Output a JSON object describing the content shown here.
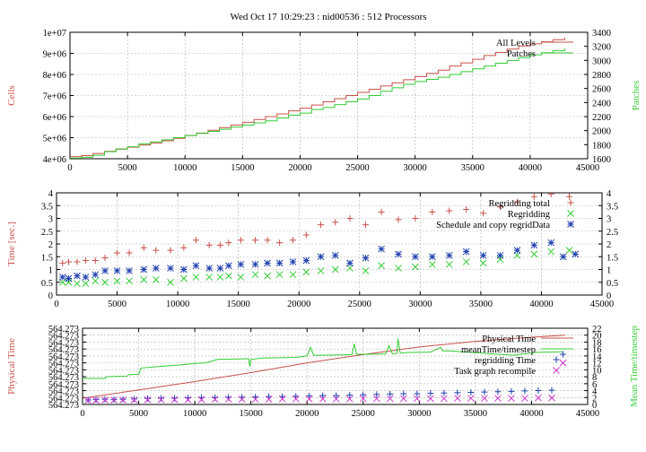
{
  "title": "Wed Oct 17 10:29:23 : nid00536 : 512 Processors",
  "colors": {
    "red": "#c8504a",
    "green": "#33cc33",
    "blue": "#1f3fae",
    "magenta": "#cc33cc",
    "grid": "#b0b0b0",
    "axis": "#000000"
  },
  "chart_data": [
    {
      "type": "line",
      "ylabel": "Cells",
      "y2label": "Patches",
      "xlim": [
        0,
        45000
      ],
      "ylim": [
        4000000,
        10000000
      ],
      "y2lim": [
        1600,
        3400
      ],
      "xticks": [
        "0",
        "5000",
        "10000",
        "15000",
        "20000",
        "25000",
        "30000",
        "35000",
        "40000",
        "45000"
      ],
      "yticks": [
        "4e+06",
        "5e+06",
        "6e+06",
        "7e+06",
        "8e+06",
        "9e+06",
        "1e+07"
      ],
      "y2ticks": [
        "1600",
        "1800",
        "2000",
        "2200",
        "2400",
        "2600",
        "2800",
        "3000",
        "3200",
        "3400"
      ],
      "grid": true,
      "legend_position": "top-right",
      "series": [
        {
          "name": "All Levels",
          "axis": "y",
          "color": "red",
          "step": true,
          "x": [
            0,
            1000,
            2000,
            3000,
            4000,
            5000,
            6000,
            7000,
            8000,
            9000,
            10000,
            11000,
            12000,
            13000,
            14000,
            15000,
            16000,
            17000,
            18000,
            19000,
            20000,
            21000,
            22000,
            23000,
            24000,
            25000,
            26000,
            27000,
            28000,
            29000,
            30000,
            31000,
            32000,
            33000,
            34000,
            35000,
            36000,
            37000,
            38000,
            39000,
            40000,
            41000,
            42000,
            43000
          ],
          "y": [
            4100000,
            4150000,
            4250000,
            4350000,
            4450000,
            4550000,
            4650000,
            4750000,
            4850000,
            4970000,
            5100000,
            5220000,
            5350000,
            5480000,
            5600000,
            5730000,
            5860000,
            6000000,
            6130000,
            6270000,
            6400000,
            6550000,
            6700000,
            6850000,
            7000000,
            7150000,
            7300000,
            7450000,
            7600000,
            7750000,
            7900000,
            8050000,
            8200000,
            8400000,
            8550000,
            8720000,
            8900000,
            9050000,
            9200000,
            9350000,
            9450000,
            9550000,
            9650000,
            9750000
          ]
        },
        {
          "name": "Patches",
          "axis": "y2",
          "color": "green",
          "step": true,
          "x": [
            0,
            1000,
            2000,
            3000,
            4000,
            5000,
            6000,
            7000,
            8000,
            9000,
            10000,
            11000,
            12000,
            13000,
            14000,
            15000,
            16000,
            17000,
            18000,
            19000,
            20000,
            21000,
            22000,
            23000,
            24000,
            25000,
            26000,
            27000,
            28000,
            29000,
            30000,
            31000,
            32000,
            33000,
            34000,
            35000,
            36000,
            37000,
            38000,
            39000,
            40000,
            41000,
            42000,
            43000
          ],
          "y": [
            1610,
            1620,
            1650,
            1700,
            1740,
            1770,
            1810,
            1840,
            1870,
            1900,
            1930,
            1960,
            1990,
            2020,
            2050,
            2080,
            2110,
            2140,
            2180,
            2220,
            2250,
            2300,
            2330,
            2370,
            2410,
            2450,
            2500,
            2560,
            2610,
            2660,
            2700,
            2730,
            2760,
            2800,
            2840,
            2880,
            2920,
            2960,
            3000,
            3040,
            3080,
            3110,
            3140,
            3170
          ]
        }
      ]
    },
    {
      "type": "scatter",
      "ylabel": "Time [sec.]",
      "xlim": [
        0,
        45000
      ],
      "ylim": [
        0,
        4
      ],
      "y2lim": [
        0,
        4
      ],
      "xticks": [
        "0",
        "5000",
        "10000",
        "15000",
        "20000",
        "25000",
        "30000",
        "35000",
        "40000",
        "45000"
      ],
      "yticks": [
        "0",
        "0.5",
        "1",
        "1.5",
        "2",
        "2.5",
        "3",
        "3.5",
        "4"
      ],
      "y2ticks": [
        "0",
        "0.5",
        "1",
        "1.5",
        "2",
        "2.5",
        "3",
        "3.5",
        "4"
      ],
      "grid": true,
      "legend_position": "top-right",
      "series": [
        {
          "name": "Regridding total",
          "color": "red",
          "marker": "plus",
          "x": [
            500,
            1000,
            1700,
            2400,
            3200,
            4000,
            5000,
            6000,
            7200,
            8200,
            9400,
            10500,
            11500,
            12600,
            13500,
            14200,
            15200,
            16400,
            17400,
            18400,
            19500,
            20600,
            21800,
            23000,
            24200,
            25500,
            26800,
            28200,
            29600,
            31000,
            32400,
            33800,
            35200,
            36600,
            38000,
            39400,
            40800,
            42300
          ],
          "y": [
            1.25,
            1.3,
            1.3,
            1.35,
            1.35,
            1.45,
            1.65,
            1.65,
            1.85,
            1.75,
            1.75,
            1.85,
            2.15,
            1.95,
            1.95,
            2.05,
            2.15,
            2.15,
            2.15,
            2.05,
            2.15,
            2.35,
            2.75,
            2.85,
            3.0,
            2.75,
            3.25,
            2.95,
            3.0,
            3.25,
            3.3,
            3.35,
            3.2,
            3.45,
            3.65,
            3.85,
            3.95,
            3.85
          ]
        },
        {
          "name": "Regridding",
          "color": "green",
          "marker": "cross",
          "x": [
            500,
            1000,
            1700,
            2400,
            3200,
            4000,
            5000,
            6000,
            7200,
            8200,
            9400,
            10500,
            11500,
            12600,
            13500,
            14200,
            15200,
            16400,
            17400,
            18400,
            19500,
            20600,
            21800,
            23000,
            24200,
            25500,
            26800,
            28200,
            29600,
            31000,
            32400,
            33800,
            35200,
            36600,
            38000,
            39400,
            40800,
            42300
          ],
          "y": [
            0.5,
            0.5,
            0.45,
            0.45,
            0.55,
            0.5,
            0.55,
            0.55,
            0.6,
            0.6,
            0.5,
            0.65,
            0.7,
            0.7,
            0.7,
            0.75,
            0.7,
            0.8,
            0.75,
            0.8,
            0.8,
            0.9,
            0.95,
            1.0,
            1.05,
            0.95,
            1.15,
            1.05,
            1.1,
            1.2,
            1.2,
            1.3,
            1.25,
            1.4,
            1.55,
            1.6,
            1.7,
            1.75
          ]
        },
        {
          "name": "Schedule and copy regridData",
          "color": "blue",
          "marker": "star",
          "x": [
            500,
            1000,
            1700,
            2400,
            3200,
            4000,
            5000,
            6000,
            7200,
            8200,
            9400,
            10500,
            11500,
            12600,
            13500,
            14200,
            15200,
            16400,
            17400,
            18400,
            19500,
            20600,
            21800,
            23000,
            24200,
            25500,
            26800,
            28200,
            29600,
            31000,
            32400,
            33800,
            35200,
            36600,
            38000,
            39400,
            40800,
            41800,
            42800
          ],
          "y": [
            0.7,
            0.65,
            0.75,
            0.7,
            0.8,
            0.95,
            0.95,
            0.95,
            1.0,
            1.05,
            1.05,
            1.0,
            1.15,
            1.05,
            1.05,
            1.15,
            1.2,
            1.2,
            1.25,
            1.25,
            1.3,
            1.35,
            1.5,
            1.55,
            1.25,
            1.45,
            1.8,
            1.6,
            1.5,
            1.5,
            1.55,
            1.7,
            1.55,
            1.55,
            1.75,
            1.95,
            2.05,
            1.5,
            1.6
          ]
        }
      ]
    },
    {
      "type": "line",
      "ylabel": "Physical Time",
      "y2label": "Mean Time/timestep",
      "xlim": [
        0,
        45000
      ],
      "ylim": [
        0,
        11
      ],
      "y2lim": [
        0,
        22
      ],
      "xticks": [
        "0",
        "5000",
        "10000",
        "15000",
        "20000",
        "25000",
        "30000",
        "35000",
        "40000",
        "45000"
      ],
      "yticks": [
        "564.273",
        "564.273",
        "564.273",
        "564.273",
        "564.273",
        "564.273",
        "564.273",
        "564.273",
        "564.273",
        "564.273",
        "564.273",
        "564.273"
      ],
      "y2ticks": [
        "0",
        "2",
        "4",
        "6",
        "8",
        "10",
        "12",
        "14",
        "16",
        "18",
        "20",
        "22"
      ],
      "grid": true,
      "legend_position": "top-right",
      "series": [
        {
          "name": "Physical Time",
          "axis": "y",
          "color": "red",
          "x": [
            0,
            5000,
            10000,
            15000,
            20000,
            25000,
            30000,
            35000,
            40000,
            43000
          ],
          "y": [
            0.9,
            2.1,
            3.3,
            4.6,
            6.0,
            7.2,
            8.3,
            9.1,
            9.7,
            10.0
          ]
        },
        {
          "name": "meanTime/timestep",
          "axis": "y2",
          "color": "green",
          "x": [
            0,
            2000,
            2100,
            4000,
            4100,
            5000,
            5200,
            7000,
            9000,
            10000,
            11000,
            12000,
            14800,
            14900,
            15000,
            16000,
            19000,
            20000,
            20300,
            20600,
            21000,
            23000,
            24000,
            24200,
            24400,
            25000,
            27000,
            27300,
            27600,
            28000,
            28100,
            28300,
            29000,
            31000,
            31900,
            32100,
            32400,
            33000,
            37000,
            38500,
            39000,
            40000,
            40200,
            42800
          ],
          "y": [
            7.5,
            7.5,
            8.0,
            8.2,
            8.6,
            8.7,
            10.5,
            11.0,
            11.5,
            11.8,
            12.0,
            13.0,
            13.2,
            11.0,
            13.0,
            13.4,
            13.6,
            14.0,
            16.5,
            14.2,
            14.2,
            14.3,
            14.4,
            17.5,
            14.5,
            14.5,
            14.6,
            17.0,
            14.6,
            14.7,
            19.0,
            14.8,
            15.0,
            15.1,
            16.5,
            15.4,
            15.5,
            15.4,
            14.5,
            14.2,
            14.5,
            14.8,
            15.0,
            15.2
          ]
        },
        {
          "name": "regridding Time",
          "axis": "y2",
          "color": "blue",
          "marker": "plus",
          "x": [
            500,
            1200,
            2000,
            2800,
            3600,
            4600,
            5800,
            7000,
            8200,
            9400,
            10600,
            11800,
            13000,
            14200,
            15400,
            16600,
            17800,
            19000,
            20200,
            21400,
            22600,
            23800,
            25000,
            26200,
            27400,
            28600,
            29800,
            31000,
            32200,
            33400,
            34600,
            35800,
            37000,
            38200,
            39400,
            40600,
            41800,
            42800
          ],
          "y": [
            1.3,
            1.4,
            1.5,
            1.4,
            1.5,
            1.6,
            1.7,
            1.8,
            1.8,
            1.9,
            2.0,
            2.0,
            2.1,
            2.1,
            2.2,
            2.3,
            2.3,
            2.4,
            2.5,
            2.6,
            2.6,
            2.7,
            2.8,
            2.9,
            3.0,
            3.1,
            3.1,
            3.2,
            3.3,
            3.4,
            3.5,
            3.6,
            3.7,
            3.8,
            3.9,
            4.0,
            4.1,
            14.5
          ]
        },
        {
          "name": "Task graph recompile",
          "axis": "y2",
          "color": "magenta",
          "marker": "cross",
          "x": [
            500,
            1200,
            2000,
            2800,
            3600,
            4600,
            5800,
            7000,
            8200,
            9400,
            10600,
            11800,
            13000,
            14200,
            15400,
            16600,
            17800,
            19000,
            20200,
            21400,
            22600,
            23800,
            25000,
            26200,
            27400,
            28600,
            29800,
            31000,
            32200,
            33400,
            34600,
            35800,
            37000,
            38200,
            39400,
            40600,
            41800,
            42800
          ],
          "y": [
            1.2,
            1.2,
            1.3,
            1.3,
            1.3,
            1.3,
            1.4,
            1.4,
            1.4,
            1.4,
            1.4,
            1.5,
            1.5,
            1.5,
            1.5,
            1.5,
            1.6,
            1.6,
            1.6,
            1.6,
            1.6,
            1.6,
            1.7,
            1.7,
            1.7,
            1.7,
            1.7,
            1.7,
            1.7,
            1.8,
            1.8,
            1.8,
            1.8,
            1.8,
            1.8,
            1.9,
            1.9,
            12.0
          ]
        }
      ]
    }
  ]
}
